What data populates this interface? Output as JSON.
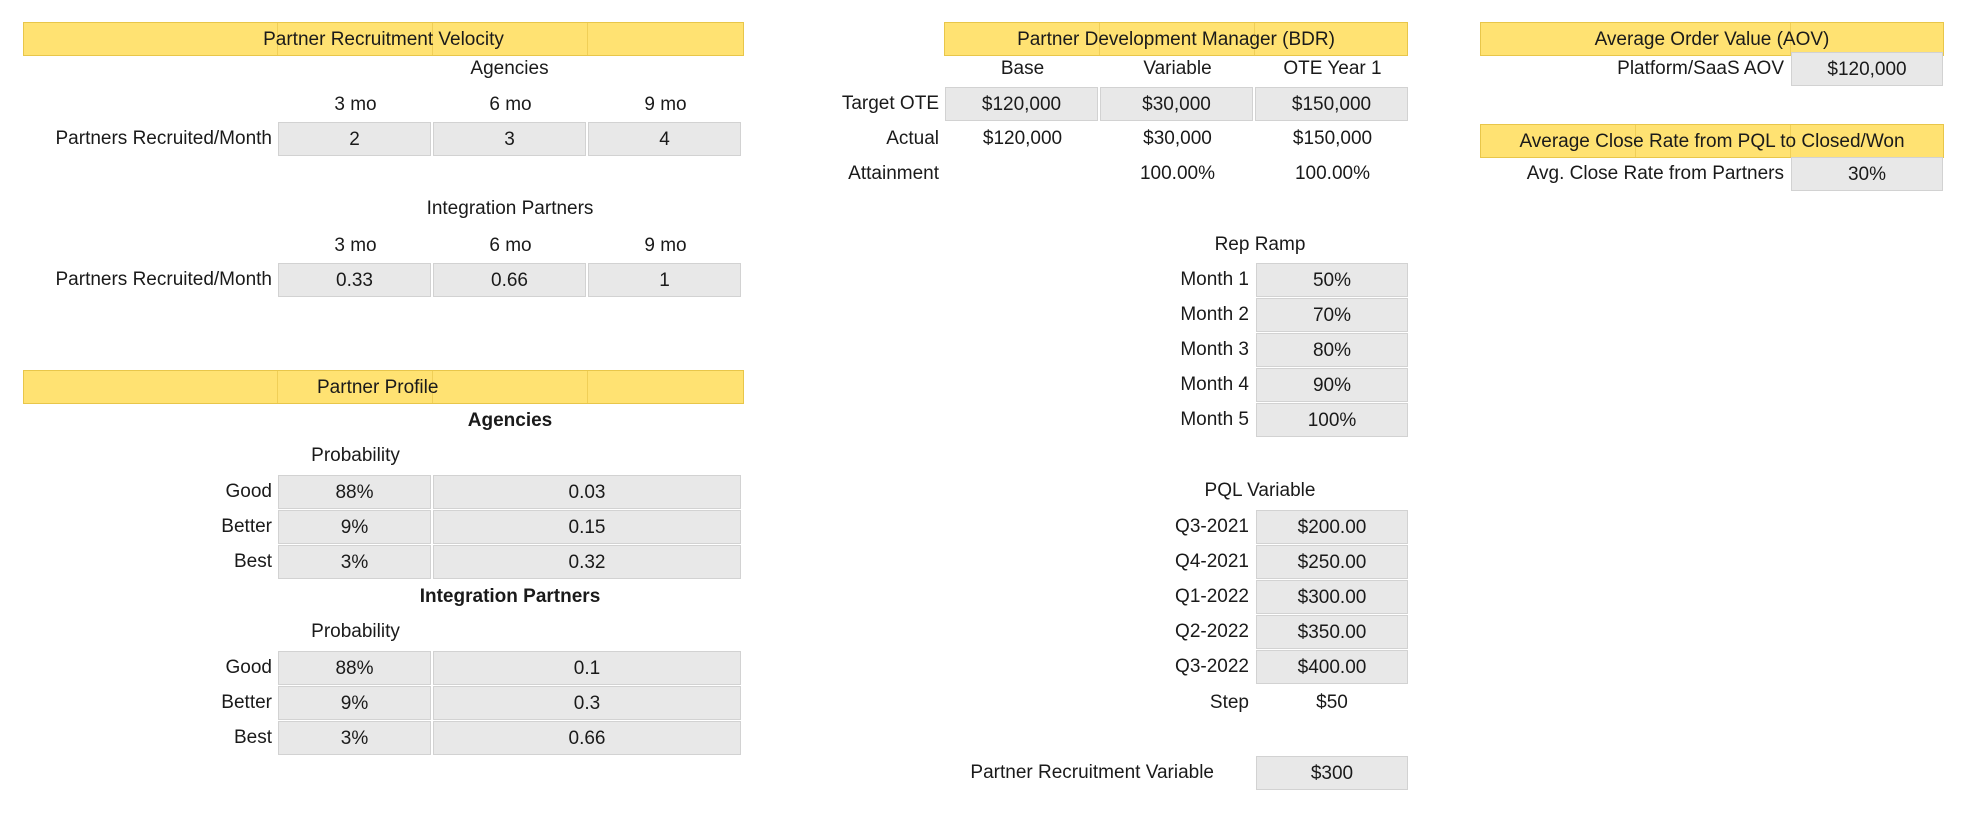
{
  "velocity": {
    "title": "Partner Recruitment Velocity",
    "agencies": {
      "label": "Agencies",
      "periods": [
        "3 mo",
        "6 mo",
        "9 mo"
      ],
      "row_label": "Partners Recruited/Month",
      "values": [
        "2",
        "3",
        "4"
      ]
    },
    "integration": {
      "label": "Integration Partners",
      "periods": [
        "3 mo",
        "6 mo",
        "9 mo"
      ],
      "row_label": "Partners Recruited/Month",
      "values": [
        "0.33",
        "0.66",
        "1"
      ]
    }
  },
  "profile": {
    "title": "Partner Profile",
    "agencies": {
      "label": "Agencies",
      "prob_label": "Probability",
      "rows": [
        {
          "label": "Good",
          "prob": "88%",
          "value": "0.03"
        },
        {
          "label": "Better",
          "prob": "9%",
          "value": "0.15"
        },
        {
          "label": "Best",
          "prob": "3%",
          "value": "0.32"
        }
      ]
    },
    "integration": {
      "label": "Integration Partners",
      "prob_label": "Probability",
      "rows": [
        {
          "label": "Good",
          "prob": "88%",
          "value": "0.1"
        },
        {
          "label": "Better",
          "prob": "9%",
          "value": "0.3"
        },
        {
          "label": "Best",
          "prob": "3%",
          "value": "0.66"
        }
      ]
    }
  },
  "pdm": {
    "title": "Partner Development Manager (BDR)",
    "columns": [
      "Base",
      "Variable",
      "OTE Year 1"
    ],
    "target": {
      "label": "Target OTE",
      "values": [
        "$120,000",
        "$30,000",
        "$150,000"
      ]
    },
    "actual": {
      "label": "Actual",
      "values": [
        "$120,000",
        "$30,000",
        "$150,000"
      ]
    },
    "attainment": {
      "label": "Attainment",
      "values": [
        "",
        "100.00%",
        "100.00%"
      ]
    }
  },
  "ramp": {
    "title": "Rep Ramp",
    "rows": [
      {
        "label": "Month 1",
        "value": "50%"
      },
      {
        "label": "Month 2",
        "value": "70%"
      },
      {
        "label": "Month 3",
        "value": "80%"
      },
      {
        "label": "Month 4",
        "value": "90%"
      },
      {
        "label": "Month 5",
        "value": "100%"
      }
    ]
  },
  "pql": {
    "title": "PQL Variable",
    "rows": [
      {
        "label": "Q3-2021",
        "value": "$200.00"
      },
      {
        "label": "Q4-2021",
        "value": "$250.00"
      },
      {
        "label": "Q1-2022",
        "value": "$300.00"
      },
      {
        "label": "Q2-2022",
        "value": "$350.00"
      },
      {
        "label": "Q3-2022",
        "value": "$400.00"
      }
    ],
    "step_label": "Step",
    "step_value": "$50"
  },
  "recruit_var": {
    "label": "Partner Recruitment Variable",
    "value": "$300"
  },
  "aov": {
    "title": "Average Order Value (AOV)",
    "label": "Platform/SaaS AOV",
    "value": "$120,000"
  },
  "close_rate": {
    "title": "Average Close Rate from PQL to Closed/Won",
    "label": "Avg. Close Rate from Partners",
    "value": "30%"
  }
}
